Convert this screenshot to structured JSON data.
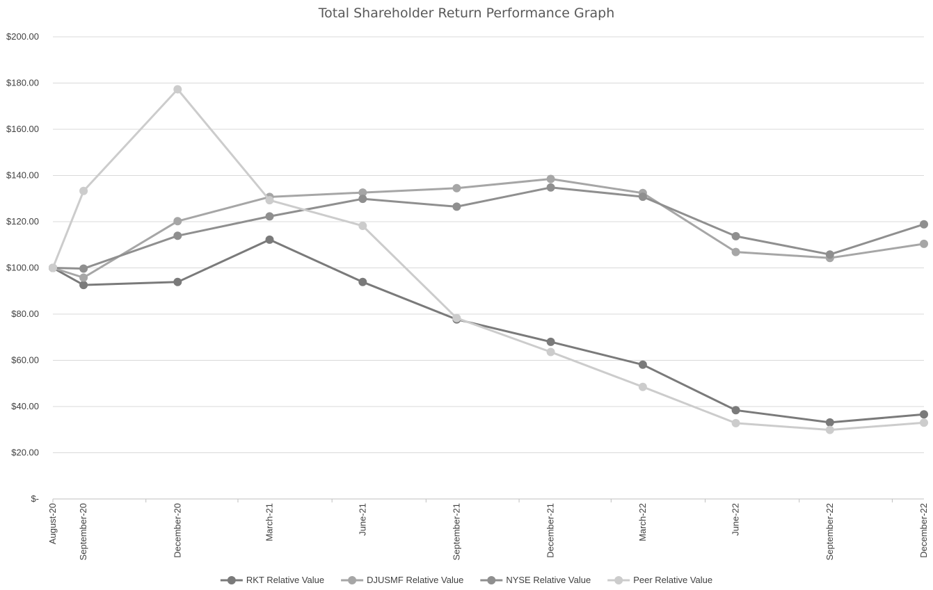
{
  "chart_data": {
    "type": "line",
    "title": "Total Shareholder Return Performance Graph",
    "xlabel": "",
    "ylabel": "",
    "categories": [
      "August-20",
      "September-20",
      "December-20",
      "March-21",
      "June-21",
      "September-21",
      "December-21",
      "March-22",
      "June-22",
      "September-22",
      "December-22"
    ],
    "x": [
      "2020-08-31",
      "2020-09-30",
      "2020-12-31",
      "2021-03-31",
      "2021-06-30",
      "2021-09-30",
      "2021-12-31",
      "2022-03-31",
      "2022-06-30",
      "2022-09-30",
      "2022-12-31"
    ],
    "y_tick_labels": [
      "$-",
      "$20.00",
      "$40.00",
      "$60.00",
      "$80.00",
      "$100.00",
      "$120.00",
      "$140.00",
      "$160.00",
      "$180.00",
      "$200.00"
    ],
    "ylim": [
      0,
      200
    ],
    "grid": true,
    "legend_position": "bottom",
    "series": [
      {
        "name": "RKT Relative Value",
        "color": "#7a7a7a",
        "values": [
          100,
          92.6,
          93.9,
          112.2,
          93.9,
          77.7,
          68.0,
          58.1,
          38.4,
          33.1,
          36.6
        ]
      },
      {
        "name": "DJUSMF Relative Value",
        "color": "#a6a6a6",
        "values": [
          100,
          95.8,
          120.2,
          130.7,
          132.6,
          134.5,
          138.5,
          132.4,
          106.9,
          104.3,
          110.4
        ]
      },
      {
        "name": "NYSE Relative Value",
        "color": "#8f8f8f",
        "values": [
          100,
          99.7,
          113.9,
          122.3,
          129.9,
          126.5,
          134.8,
          130.8,
          113.7,
          105.8,
          118.9
        ]
      },
      {
        "name": "Peer Relative Value",
        "color": "#cccccc",
        "values": [
          100,
          133.3,
          177.3,
          129.3,
          118.2,
          78.3,
          63.6,
          48.5,
          32.8,
          29.9,
          33.0
        ]
      }
    ]
  }
}
